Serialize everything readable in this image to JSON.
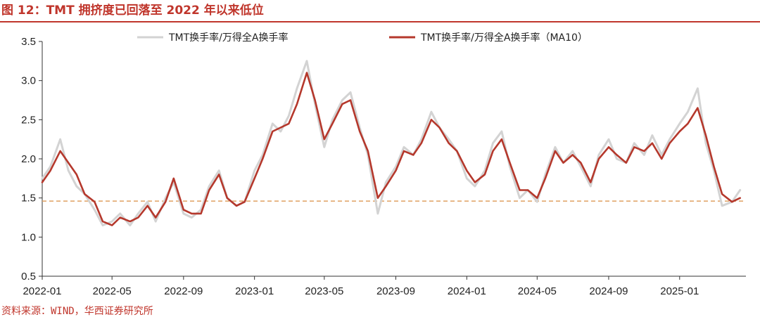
{
  "title": "图 12：TMT 拥挤度已回落至 2022 年以来低位",
  "source": "资料来源：WIND，华西证券研究所",
  "chart_data": {
    "type": "line",
    "title": "图 12：TMT 拥挤度已回落至 2022 年以来低位",
    "xlabel": "",
    "ylabel": "",
    "ylim": [
      0.5,
      3.5
    ],
    "yticks": [
      "0.5",
      "1.0",
      "1.5",
      "2.0",
      "2.5",
      "3.0",
      "3.5"
    ],
    "xticks": [
      "2022-01",
      "2022-05",
      "2022-09",
      "2023-01",
      "2023-05",
      "2023-09",
      "2024-01",
      "2024-05",
      "2024-09",
      "2025-01"
    ],
    "grid": false,
    "legend_position": "top",
    "reference_line": {
      "y": 1.46,
      "color": "#e0a060",
      "style": "dashed"
    },
    "series": [
      {
        "name": "TMT换手率/万得全A换手率",
        "color": "#d3d3d3",
        "x": [
          "2022-01",
          "2022-01-15",
          "2022-02",
          "2022-02-15",
          "2022-03",
          "2022-03-15",
          "2022-04",
          "2022-04-15",
          "2022-05",
          "2022-05-15",
          "2022-06",
          "2022-06-15",
          "2022-07",
          "2022-07-15",
          "2022-08",
          "2022-08-15",
          "2022-09",
          "2022-09-15",
          "2022-10",
          "2022-10-15",
          "2022-11",
          "2022-11-15",
          "2022-12",
          "2022-12-15",
          "2023-01",
          "2023-01-15",
          "2023-02",
          "2023-02-15",
          "2023-03",
          "2023-03-15",
          "2023-04",
          "2023-04-15",
          "2023-05",
          "2023-05-15",
          "2023-06",
          "2023-06-15",
          "2023-07",
          "2023-07-15",
          "2023-08",
          "2023-08-15",
          "2023-09",
          "2023-09-15",
          "2023-10",
          "2023-10-15",
          "2023-11",
          "2023-11-15",
          "2023-12",
          "2023-12-15",
          "2024-01",
          "2024-01-15",
          "2024-02",
          "2024-02-15",
          "2024-03",
          "2024-03-15",
          "2024-04",
          "2024-04-15",
          "2024-05",
          "2024-05-15",
          "2024-06",
          "2024-06-15",
          "2024-07",
          "2024-07-15",
          "2024-08",
          "2024-08-15",
          "2024-09",
          "2024-09-15",
          "2024-10",
          "2024-10-15",
          "2024-11",
          "2024-11-15",
          "2024-12",
          "2024-12-15",
          "2025-01",
          "2025-01-15",
          "2025-02",
          "2025-02-15",
          "2025-03",
          "2025-03-15",
          "2025-04",
          "2025-04-15"
        ],
        "values": [
          1.75,
          1.9,
          2.25,
          1.85,
          1.65,
          1.55,
          1.35,
          1.15,
          1.2,
          1.3,
          1.15,
          1.3,
          1.45,
          1.2,
          1.5,
          1.7,
          1.3,
          1.25,
          1.35,
          1.65,
          1.85,
          1.5,
          1.4,
          1.45,
          1.85,
          2.05,
          2.45,
          2.35,
          2.55,
          2.9,
          3.25,
          2.7,
          2.15,
          2.5,
          2.75,
          2.85,
          2.4,
          2.05,
          1.3,
          1.7,
          1.9,
          2.15,
          2.05,
          2.25,
          2.6,
          2.4,
          2.25,
          2.1,
          1.75,
          1.65,
          1.85,
          2.2,
          2.35,
          1.9,
          1.5,
          1.6,
          1.45,
          1.8,
          2.15,
          1.95,
          2.1,
          1.9,
          1.65,
          2.05,
          2.25,
          2.0,
          1.95,
          2.2,
          2.05,
          2.3,
          2.05,
          2.25,
          2.45,
          2.6,
          2.9,
          2.2,
          1.85,
          1.4,
          1.45,
          1.6
        ]
      },
      {
        "name": "TMT换手率/万得全A换手率（MA10）",
        "color": "#b5382c",
        "x": [
          "2022-01",
          "2022-01-15",
          "2022-02",
          "2022-02-15",
          "2022-03",
          "2022-03-15",
          "2022-04",
          "2022-04-15",
          "2022-05",
          "2022-05-15",
          "2022-06",
          "2022-06-15",
          "2022-07",
          "2022-07-15",
          "2022-08",
          "2022-08-15",
          "2022-09",
          "2022-09-15",
          "2022-10",
          "2022-10-15",
          "2022-11",
          "2022-11-15",
          "2022-12",
          "2022-12-15",
          "2023-01",
          "2023-01-15",
          "2023-02",
          "2023-02-15",
          "2023-03",
          "2023-03-15",
          "2023-04",
          "2023-04-15",
          "2023-05",
          "2023-05-15",
          "2023-06",
          "2023-06-15",
          "2023-07",
          "2023-07-15",
          "2023-08",
          "2023-08-15",
          "2023-09",
          "2023-09-15",
          "2023-10",
          "2023-10-15",
          "2023-11",
          "2023-11-15",
          "2023-12",
          "2023-12-15",
          "2024-01",
          "2024-01-15",
          "2024-02",
          "2024-02-15",
          "2024-03",
          "2024-03-15",
          "2024-04",
          "2024-04-15",
          "2024-05",
          "2024-05-15",
          "2024-06",
          "2024-06-15",
          "2024-07",
          "2024-07-15",
          "2024-08",
          "2024-08-15",
          "2024-09",
          "2024-09-15",
          "2024-10",
          "2024-10-15",
          "2024-11",
          "2024-11-15",
          "2024-12",
          "2024-12-15",
          "2025-01",
          "2025-01-15",
          "2025-02",
          "2025-02-15",
          "2025-03",
          "2025-03-15",
          "2025-04",
          "2025-04-15"
        ],
        "values": [
          1.7,
          1.85,
          2.1,
          1.95,
          1.8,
          1.55,
          1.45,
          1.2,
          1.15,
          1.25,
          1.2,
          1.25,
          1.4,
          1.25,
          1.45,
          1.75,
          1.35,
          1.3,
          1.3,
          1.6,
          1.8,
          1.5,
          1.4,
          1.45,
          1.75,
          2.0,
          2.35,
          2.4,
          2.45,
          2.7,
          3.1,
          2.75,
          2.25,
          2.45,
          2.7,
          2.75,
          2.35,
          2.1,
          1.5,
          1.65,
          1.85,
          2.1,
          2.05,
          2.2,
          2.5,
          2.4,
          2.2,
          2.1,
          1.85,
          1.7,
          1.8,
          2.1,
          2.25,
          1.95,
          1.6,
          1.6,
          1.5,
          1.75,
          2.1,
          1.95,
          2.05,
          1.95,
          1.7,
          2.0,
          2.15,
          2.05,
          1.95,
          2.15,
          2.1,
          2.2,
          2.0,
          2.2,
          2.35,
          2.45,
          2.65,
          2.3,
          1.9,
          1.55,
          1.45,
          1.5
        ]
      }
    ]
  }
}
